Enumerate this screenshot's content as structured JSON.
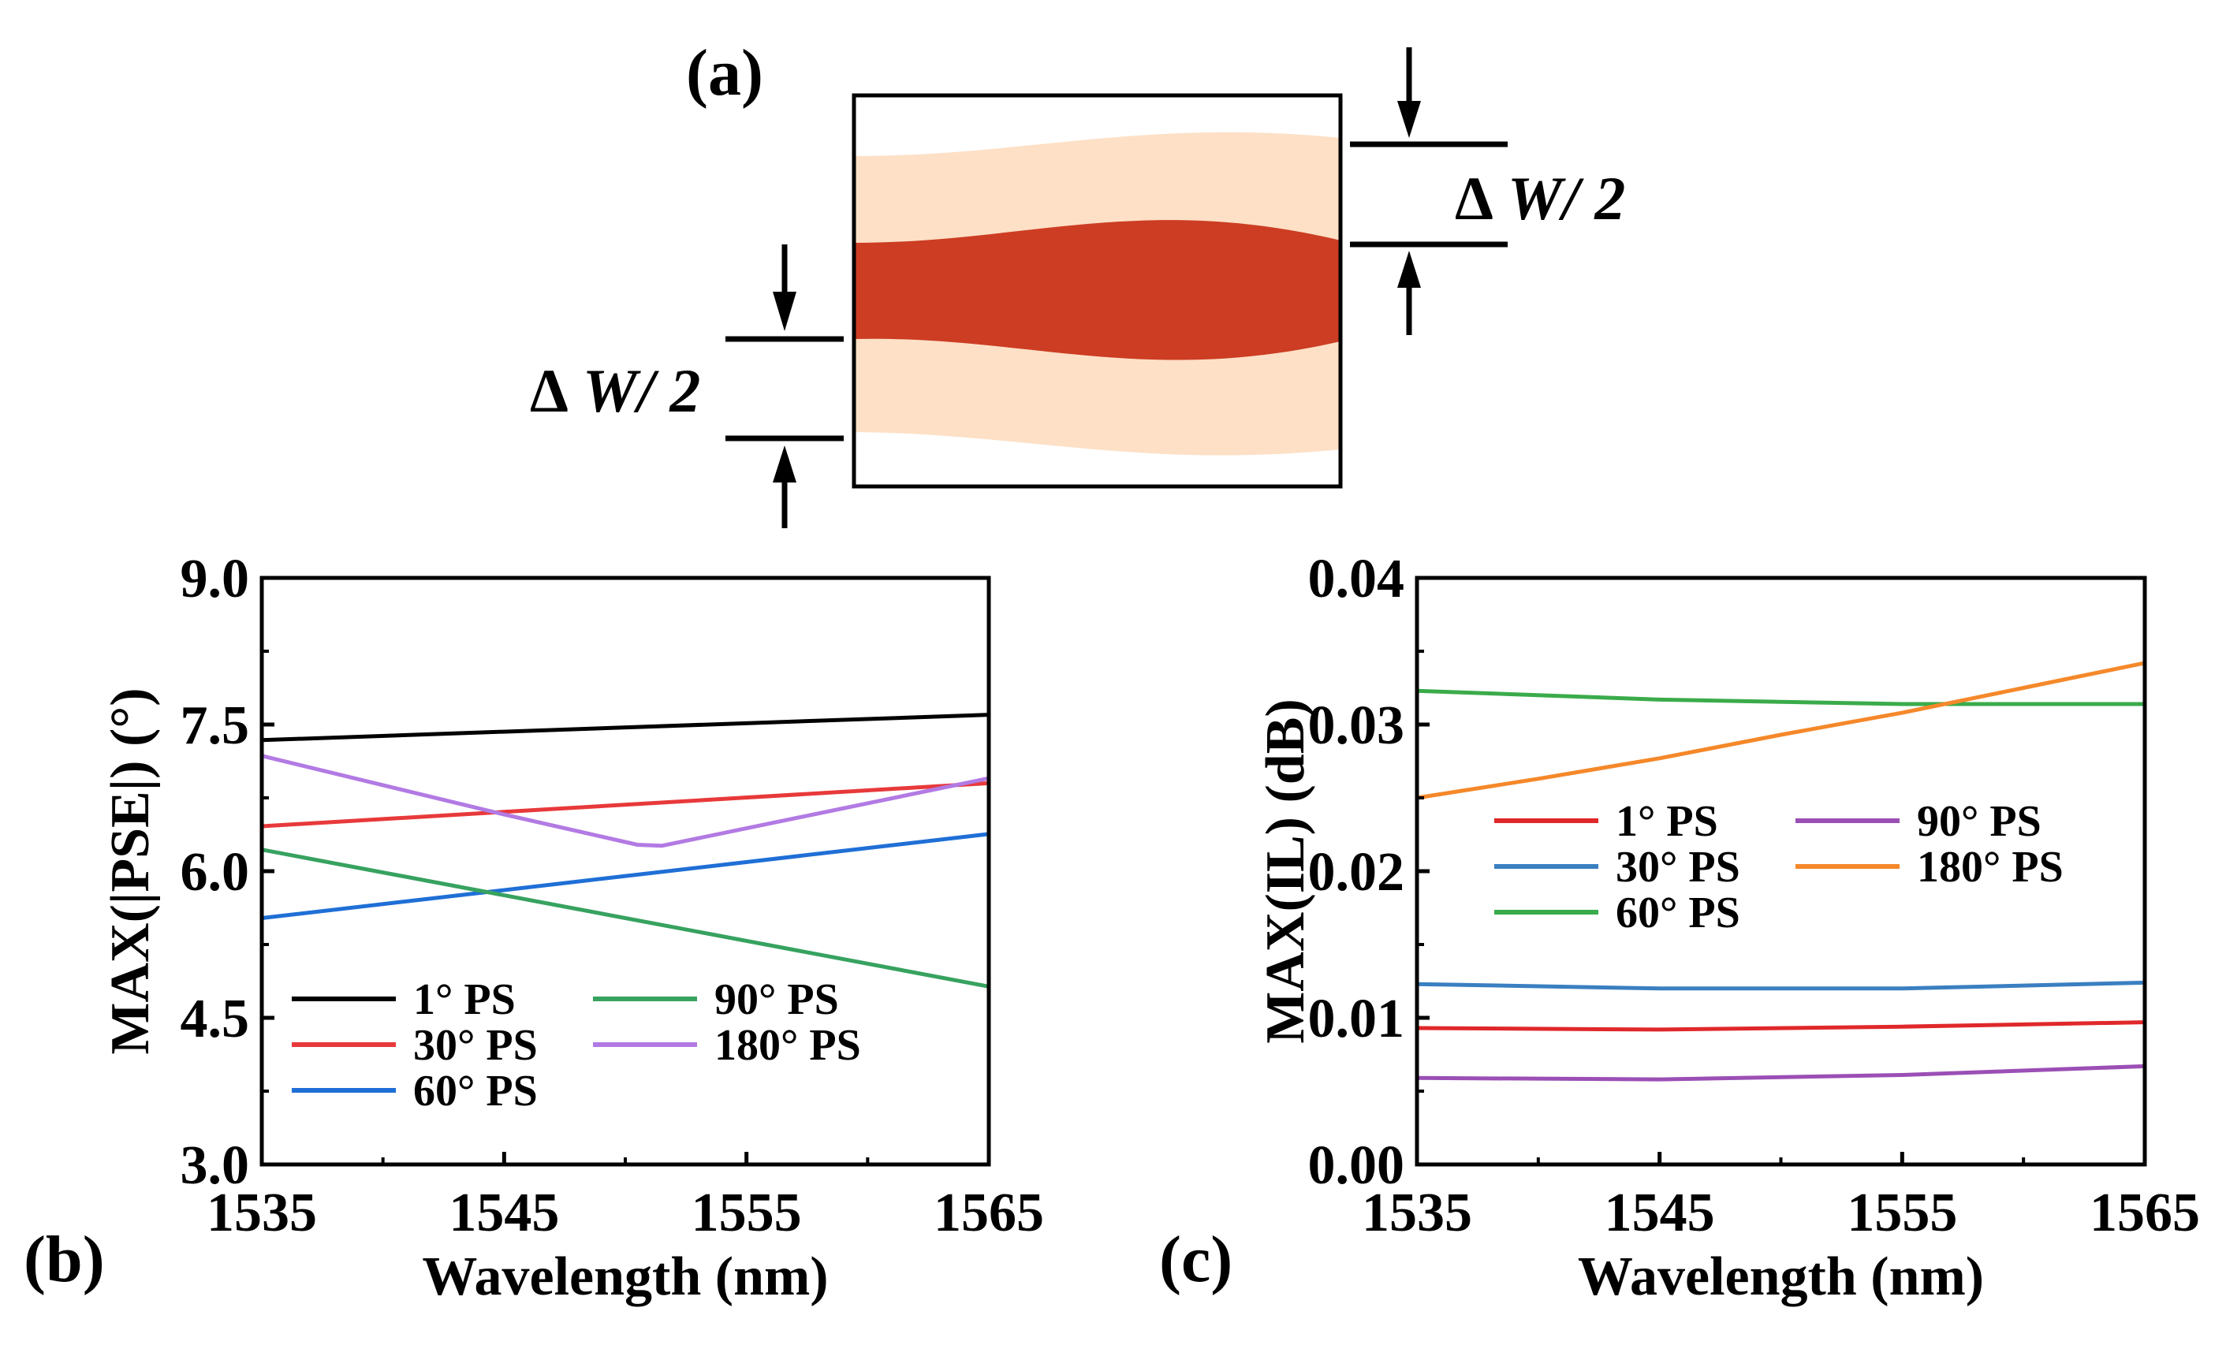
{
  "figure": {
    "panel_a": {
      "label": "(a)",
      "annotation_top": {
        "delta": "Δ",
        "text": "W/ 2"
      },
      "annotation_bottom": {
        "delta": "Δ",
        "text": "W/ 2"
      },
      "colors": {
        "core": "#cc3d23",
        "cladding": "#fde0c6",
        "border": "#000000"
      }
    },
    "panel_b_label": "(b)",
    "panel_c_label": "(c)"
  },
  "chart_data": [
    {
      "type": "line",
      "id": "b",
      "xlabel": "Wavelength (nm)",
      "ylabel": "MAX(|PSE|) (°)",
      "xlim": [
        1535,
        1565
      ],
      "ylim": [
        3.0,
        9.0
      ],
      "xticks": [
        "1535",
        "1545",
        "1555",
        "1565"
      ],
      "yticks": [
        "3.0",
        "4.5",
        "6.0",
        "7.5",
        "9.0"
      ],
      "xticks_v": [
        1535,
        1545,
        1555,
        1565
      ],
      "yticks_v": [
        3.0,
        4.5,
        6.0,
        7.5,
        9.0
      ],
      "legend_cols": 2,
      "series": [
        {
          "name": "1° PS",
          "color": "#000000",
          "x": [
            1535,
            1565
          ],
          "y": [
            7.34,
            7.6
          ]
        },
        {
          "name": "30° PS",
          "color": "#e8393a",
          "x": [
            1535,
            1565
          ],
          "y": [
            6.46,
            6.9
          ]
        },
        {
          "name": "60° PS",
          "color": "#1f6fd6",
          "x": [
            1535,
            1565
          ],
          "y": [
            5.52,
            6.38
          ]
        },
        {
          "name": "90° PS",
          "color": "#37a260",
          "x": [
            1535,
            1565
          ],
          "y": [
            6.22,
            4.82
          ]
        },
        {
          "name": "180° PS",
          "color": "#b27ae3",
          "x": [
            1535,
            1545,
            1550.5,
            1551.5,
            1565
          ],
          "y": [
            7.18,
            6.58,
            6.27,
            6.26,
            6.95
          ]
        }
      ]
    },
    {
      "type": "line",
      "id": "c",
      "xlabel": "Wavelength (nm)",
      "ylabel": "MAX(IL) (dB)",
      "xlim": [
        1535,
        1565
      ],
      "ylim": [
        0.0,
        0.04
      ],
      "xticks": [
        "1535",
        "1545",
        "1555",
        "1565"
      ],
      "yticks": [
        "0.00",
        "0.01",
        "0.02",
        "0.03",
        "0.04"
      ],
      "xticks_v": [
        1535,
        1545,
        1555,
        1565
      ],
      "yticks_v": [
        0.0,
        0.01,
        0.02,
        0.03,
        0.04
      ],
      "legend_cols": 2,
      "series": [
        {
          "name": "1° PS",
          "color": "#e0282a",
          "x": [
            1535,
            1545,
            1555,
            1565
          ],
          "y": [
            0.0093,
            0.0092,
            0.0094,
            0.0097
          ]
        },
        {
          "name": "30° PS",
          "color": "#3a7fc1",
          "x": [
            1535,
            1545,
            1555,
            1565
          ],
          "y": [
            0.0123,
            0.012,
            0.012,
            0.0124
          ]
        },
        {
          "name": "60° PS",
          "color": "#3aab4a",
          "x": [
            1535,
            1545,
            1555,
            1565
          ],
          "y": [
            0.0323,
            0.0317,
            0.0314,
            0.0314
          ]
        },
        {
          "name": "90° PS",
          "color": "#9b4fb5",
          "x": [
            1535,
            1545,
            1555,
            1565
          ],
          "y": [
            0.0059,
            0.0058,
            0.0061,
            0.0067
          ]
        },
        {
          "name": "180° PS",
          "color": "#f5882a",
          "x": [
            1535,
            1540,
            1545,
            1550,
            1555,
            1560,
            1565
          ],
          "y": [
            0.025,
            0.0263,
            0.0277,
            0.0293,
            0.0308,
            0.0325,
            0.0342
          ]
        }
      ]
    }
  ]
}
